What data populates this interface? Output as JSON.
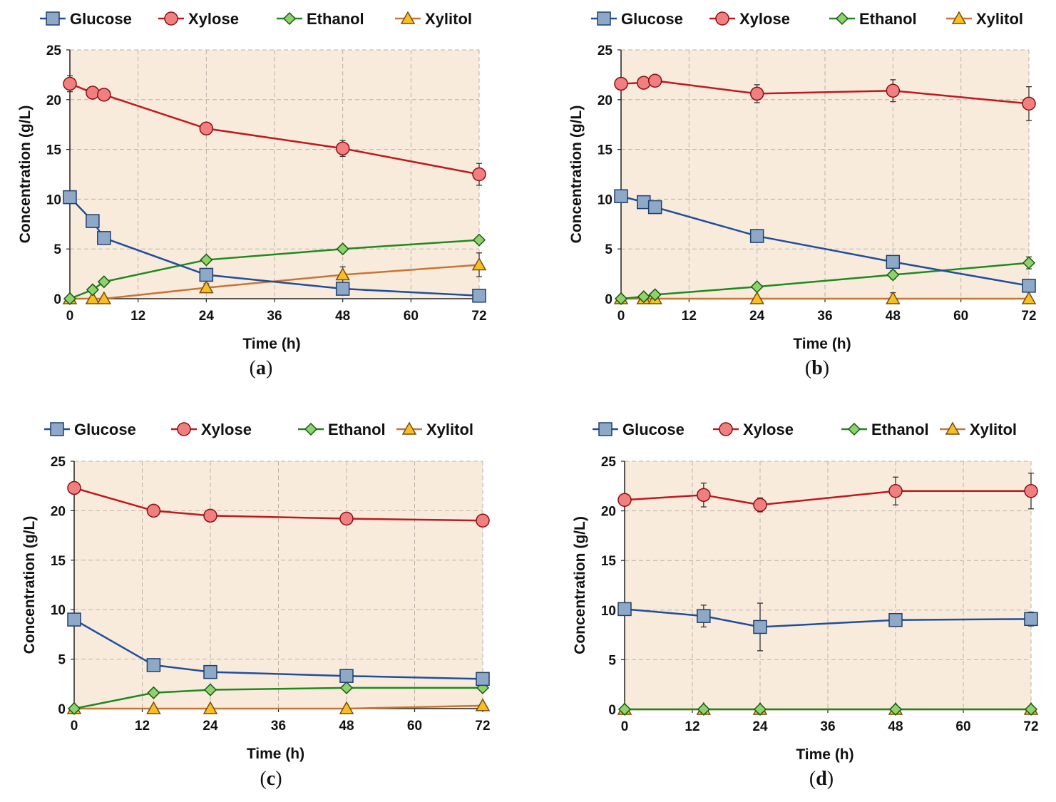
{
  "series_styles": [
    {
      "name": "Glucose",
      "color": "#1f4e9c",
      "fill": "#8ea9c8",
      "marker": "square"
    },
    {
      "name": "Xylose",
      "color": "#c0181d",
      "fill": "#f08080",
      "marker": "circle"
    },
    {
      "name": "Ethanol",
      "color": "#1e8a1e",
      "fill": "#8fd26b",
      "marker": "diamond"
    },
    {
      "name": "Xylitol",
      "color": "#c87533",
      "fill": "#f6c022",
      "marker": "triangle"
    }
  ],
  "plot_background": "#f8ebdc",
  "chart_data": [
    {
      "type": "line",
      "panel": "a",
      "xlabel": "Time (h)",
      "ylabel": "Concentration (g/L)",
      "xlim": [
        0,
        72
      ],
      "ylim": [
        0,
        25
      ],
      "xticks": [
        "0",
        "12",
        "24",
        "36",
        "48",
        "60",
        "72"
      ],
      "yticks": [
        "0",
        "5",
        "10",
        "15",
        "20",
        "25"
      ],
      "grid": true,
      "legend": "top",
      "series": [
        {
          "name": "Glucose",
          "x": [
            0,
            4,
            6,
            24,
            48,
            72
          ],
          "y": [
            10.2,
            7.8,
            6.1,
            2.4,
            1.0,
            0.3
          ],
          "err": [
            0.3,
            0.3,
            0.3,
            0.3,
            0.2,
            0.1
          ]
        },
        {
          "name": "Xylose",
          "x": [
            0,
            4,
            6,
            24,
            48,
            72
          ],
          "y": [
            21.6,
            20.7,
            20.5,
            17.1,
            15.1,
            12.5
          ],
          "err": [
            0.8,
            0.3,
            0.3,
            0.3,
            0.8,
            1.1
          ]
        },
        {
          "name": "Ethanol",
          "x": [
            0,
            4,
            6,
            24,
            48,
            72
          ],
          "y": [
            0,
            0.9,
            1.7,
            3.9,
            5.0,
            5.9
          ],
          "err": [
            0,
            0.1,
            0.1,
            0.2,
            0.2,
            0.2
          ]
        },
        {
          "name": "Xylitol",
          "x": [
            0,
            4,
            6,
            24,
            48,
            72
          ],
          "y": [
            0,
            0,
            0,
            1.1,
            2.4,
            3.4
          ],
          "err": [
            0,
            0,
            0,
            0.4,
            0.8,
            1.2
          ]
        }
      ]
    },
    {
      "type": "line",
      "panel": "b",
      "xlabel": "Time (h)",
      "ylabel": "Concentration (g/L)",
      "xlim": [
        0,
        72
      ],
      "ylim": [
        0,
        25
      ],
      "xticks": [
        "0",
        "12",
        "24",
        "36",
        "48",
        "60",
        "72"
      ],
      "yticks": [
        "0",
        "5",
        "10",
        "15",
        "20",
        "25"
      ],
      "grid": true,
      "legend": "top",
      "series": [
        {
          "name": "Glucose",
          "x": [
            0,
            4,
            6,
            24,
            48,
            72
          ],
          "y": [
            10.3,
            9.7,
            9.2,
            6.3,
            3.7,
            1.3
          ],
          "err": [
            0.3,
            0.3,
            0.3,
            0.3,
            0.3,
            0.2
          ]
        },
        {
          "name": "Xylose",
          "x": [
            0,
            4,
            6,
            24,
            48,
            72
          ],
          "y": [
            21.6,
            21.7,
            21.9,
            20.6,
            20.9,
            19.6
          ],
          "err": [
            0.4,
            0.3,
            0.3,
            0.9,
            1.1,
            1.7
          ]
        },
        {
          "name": "Ethanol",
          "x": [
            0,
            4,
            6,
            24,
            48,
            72
          ],
          "y": [
            0,
            0.2,
            0.4,
            1.2,
            2.4,
            3.6
          ],
          "err": [
            0,
            0.1,
            0.1,
            0.2,
            0.4,
            0.6
          ]
        },
        {
          "name": "Xylitol",
          "x": [
            0,
            4,
            6,
            24,
            48,
            72
          ],
          "y": [
            0,
            0,
            0,
            0,
            0,
            0
          ],
          "err": [
            0,
            0,
            0,
            0,
            0.6,
            0
          ]
        }
      ]
    },
    {
      "type": "line",
      "panel": "c",
      "xlabel": "Time (h)",
      "ylabel": "Concentration (g/L)",
      "xlim": [
        0,
        72
      ],
      "ylim": [
        0,
        25
      ],
      "xticks": [
        "0",
        "12",
        "24",
        "36",
        "48",
        "60",
        "72"
      ],
      "yticks": [
        "0",
        "5",
        "10",
        "15",
        "20",
        "25"
      ],
      "grid": true,
      "legend": "top",
      "series": [
        {
          "name": "Glucose",
          "x": [
            0,
            14,
            24,
            48,
            72
          ],
          "y": [
            9.0,
            4.4,
            3.7,
            3.3,
            3.0
          ],
          "err": [
            0.2,
            0.2,
            0.2,
            0.2,
            0.2
          ]
        },
        {
          "name": "Xylose",
          "x": [
            0,
            14,
            24,
            48,
            72
          ],
          "y": [
            22.3,
            20.0,
            19.5,
            19.2,
            19.0
          ],
          "err": [
            0.2,
            0.2,
            0.2,
            0.2,
            0.2
          ]
        },
        {
          "name": "Ethanol",
          "x": [
            0,
            14,
            24,
            48,
            72
          ],
          "y": [
            0,
            1.6,
            1.9,
            2.1,
            2.1
          ],
          "err": [
            0,
            0.1,
            0.1,
            0.1,
            0.1
          ]
        },
        {
          "name": "Xylitol",
          "x": [
            0,
            14,
            24,
            48,
            72
          ],
          "y": [
            0,
            0,
            0,
            0,
            0.3
          ],
          "err": [
            0,
            0,
            0,
            0,
            0.1
          ]
        }
      ]
    },
    {
      "type": "line",
      "panel": "d",
      "xlabel": "Time (h)",
      "ylabel": "Concentration (g/L)",
      "xlim": [
        0,
        72
      ],
      "ylim": [
        0,
        25
      ],
      "xticks": [
        "0",
        "12",
        "24",
        "36",
        "48",
        "60",
        "72"
      ],
      "yticks": [
        "0",
        "5",
        "10",
        "15",
        "20",
        "25"
      ],
      "grid": true,
      "legend": "top",
      "series": [
        {
          "name": "Glucose",
          "x": [
            0,
            14,
            24,
            48,
            72
          ],
          "y": [
            10.1,
            9.4,
            8.3,
            9.0,
            9.1
          ],
          "err": [
            0.3,
            1.1,
            2.4,
            0.3,
            0.7
          ]
        },
        {
          "name": "Xylose",
          "x": [
            0,
            14,
            24,
            48,
            72
          ],
          "y": [
            21.1,
            21.6,
            20.6,
            22.0,
            22.0
          ],
          "err": [
            0.3,
            1.2,
            0.7,
            1.4,
            1.8
          ]
        },
        {
          "name": "Ethanol",
          "x": [
            0,
            14,
            24,
            48,
            72
          ],
          "y": [
            0,
            0,
            0,
            0,
            0
          ],
          "err": [
            0,
            0,
            0,
            0,
            0
          ]
        },
        {
          "name": "Xylitol",
          "x": [
            0,
            14,
            24,
            48,
            72
          ],
          "y": [
            0,
            0,
            0,
            0,
            0
          ],
          "err": [
            0,
            0,
            0,
            0,
            0
          ]
        }
      ]
    }
  ]
}
